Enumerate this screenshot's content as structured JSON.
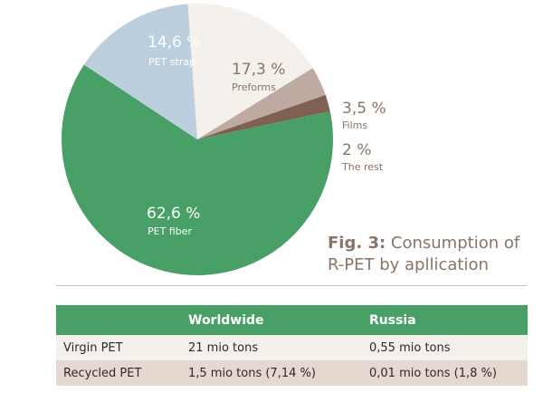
{
  "chart_data": {
    "type": "pie",
    "title": "",
    "slices": [
      {
        "label": "PET strap",
        "value": 14.6,
        "display": "14,6 %",
        "color": "#bccfdf"
      },
      {
        "label": "Preforms",
        "value": 17.3,
        "display": "17,3 %",
        "color": "#f4f0ec"
      },
      {
        "label": "Films",
        "value": 3.5,
        "display": "3,5 %",
        "color": "#bfaaa1"
      },
      {
        "label": "The rest",
        "value": 2,
        "display": "2 %",
        "color": "#7f6154"
      },
      {
        "label": "PET fiber",
        "value": 62.6,
        "display": "62,6 %",
        "color": "#48a066"
      }
    ]
  },
  "caption": {
    "fig_label": "Fig. 3:",
    "text_line1": " Consumption of",
    "text_line2": "R-PET by apllication"
  },
  "table": {
    "headers": [
      "",
      "Worldwide",
      "Russia"
    ],
    "rows": [
      [
        "Virgin PET",
        "21 mio tons",
        "0,55 mio tons"
      ],
      [
        "Recycled PET",
        "1,5 mio tons (7,14 %)",
        "0,01 mio tons (1,8 %)"
      ]
    ]
  }
}
